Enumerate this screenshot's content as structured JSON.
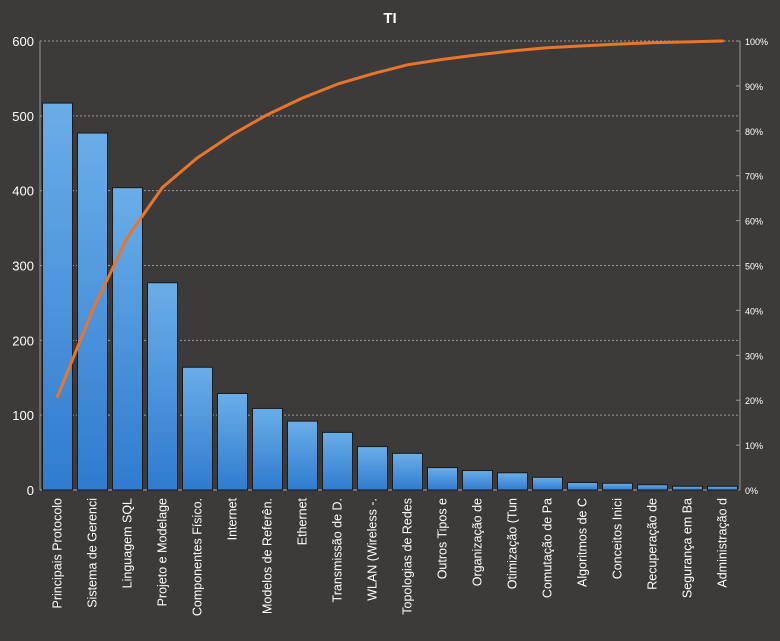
{
  "chart_data": {
    "type": "bar",
    "title": "TI",
    "categories": [
      "Principais Protocolo",
      "Sistema de Gerenci",
      "Linguagem SQL",
      "Projeto e Modelage",
      "Componentes Físico.",
      "Internet",
      "Modelos de Referên.",
      "Ethernet",
      "Transmissão de D.",
      "WLAN (Wireless -.",
      "Topologias de Redes",
      "Outros Tipos e",
      "Organização de",
      "Otimização (Tun",
      "Comutação de Pa",
      "Algoritmos de C",
      "Conceitos Inici",
      "Recuperação de",
      "Segurança em Ba",
      "Administração d"
    ],
    "series": [
      {
        "type": "bar",
        "values": [
          517,
          477,
          404,
          277,
          164,
          129,
          109,
          92,
          77,
          58,
          49,
          30,
          26,
          23,
          17,
          10,
          9,
          7,
          5,
          5
        ],
        "axis": "left",
        "color": "#4a90d9"
      },
      {
        "type": "line",
        "values": [
          20.8,
          40.0,
          56.3,
          67.4,
          74.0,
          79.2,
          83.6,
          87.3,
          90.4,
          92.7,
          94.7,
          95.9,
          96.9,
          97.8,
          98.5,
          98.9,
          99.3,
          99.6,
          99.8,
          100.0
        ],
        "axis": "right",
        "color": "#e8752a"
      }
    ],
    "y_left": {
      "ticks": [
        "0",
        "100",
        "200",
        "300",
        "400",
        "500",
        "600"
      ],
      "range": [
        0,
        600
      ]
    },
    "y_right": {
      "ticks": [
        "0%",
        "10%",
        "20%",
        "30%",
        "40%",
        "50%",
        "60%",
        "70%",
        "80%",
        "90%",
        "100%"
      ],
      "range": [
        0,
        100
      ]
    },
    "grid": true,
    "legend": "none"
  }
}
